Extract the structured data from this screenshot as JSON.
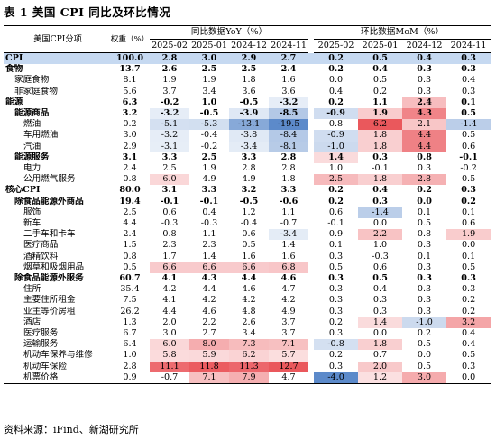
{
  "title": "表 1 美国 CPI 同比及环比情况",
  "source": "资料来源：iFind、新湖研究所",
  "header": {
    "item": "美国CPI分项",
    "weight": "权重（%）",
    "yoy_group": "同比数据YoY（%）",
    "mom_group": "环比数据MoM（%）",
    "months": [
      "2025-02",
      "2025-01",
      "2024-12",
      "2024-11"
    ]
  },
  "colors": {
    "cpi_row_bg": "#c6d9f1",
    "red": "#e8454a",
    "blue": "#4a7dc4"
  },
  "rows": [
    {
      "name": "CPI",
      "indent": 0,
      "bold": true,
      "cpi": true,
      "weight": "100.0",
      "yoy": [
        "2.8",
        "3.0",
        "2.9",
        "2.7"
      ],
      "mom": [
        "0.2",
        "0.5",
        "0.4",
        "0.3"
      ]
    },
    {
      "name": "食物",
      "indent": 0,
      "bold": true,
      "weight": "13.7",
      "yoy": [
        "2.6",
        "2.5",
        "2.5",
        "2.4"
      ],
      "mom": [
        "0.2",
        "0.4",
        "0.3",
        "0.3"
      ]
    },
    {
      "name": "家庭食物",
      "indent": 1,
      "bold": false,
      "weight": "8.1",
      "yoy": [
        "1.9",
        "1.9",
        "1.8",
        "1.6"
      ],
      "mom": [
        "0.0",
        "0.5",
        "0.3",
        "0.4"
      ]
    },
    {
      "name": "非家庭食物",
      "indent": 1,
      "bold": false,
      "weight": "5.6",
      "yoy": [
        "3.7",
        "3.4",
        "3.6",
        "3.6"
      ],
      "mom": [
        "0.4",
        "0.2",
        "0.3",
        "0.3"
      ]
    },
    {
      "name": "能源",
      "indent": 0,
      "bold": true,
      "weight": "6.3",
      "yoy": [
        "-0.2",
        "1.0",
        "-0.5",
        "-3.2"
      ],
      "mom": [
        "0.2",
        "1.1",
        "2.4",
        "0.1"
      ]
    },
    {
      "name": "能源商品",
      "indent": 1,
      "bold": true,
      "weight": "3.2",
      "yoy": [
        "-3.2",
        "-0.5",
        "-3.9",
        "-8.5"
      ],
      "mom": [
        "-0.9",
        "1.9",
        "4.3",
        "0.5"
      ]
    },
    {
      "name": "燃油",
      "indent": 2,
      "bold": false,
      "weight": "0.2",
      "yoy": [
        "-5.1",
        "-5.3",
        "-13.1",
        "-19.5"
      ],
      "mom": [
        "0.8",
        "6.2",
        "2.1",
        "-1.4"
      ]
    },
    {
      "name": "车用燃油",
      "indent": 2,
      "bold": false,
      "weight": "3.0",
      "yoy": [
        "-3.2",
        "-0.4",
        "-3.8",
        "-8.4"
      ],
      "mom": [
        "-0.9",
        "1.8",
        "4.4",
        "0.5"
      ]
    },
    {
      "name": "汽油",
      "indent": 2,
      "bold": false,
      "weight": "2.9",
      "yoy": [
        "-3.1",
        "-0.2",
        "-3.4",
        "-8.1"
      ],
      "mom": [
        "-1.0",
        "1.8",
        "4.4",
        "0.6"
      ]
    },
    {
      "name": "能源服务",
      "indent": 1,
      "bold": true,
      "weight": "3.1",
      "yoy": [
        "3.3",
        "2.5",
        "3.3",
        "2.8"
      ],
      "mom": [
        "1.4",
        "0.3",
        "0.8",
        "-0.1"
      ]
    },
    {
      "name": "电力",
      "indent": 2,
      "bold": false,
      "weight": "2.4",
      "yoy": [
        "2.5",
        "1.9",
        "2.8",
        "2.8"
      ],
      "mom": [
        "1.0",
        "-0.1",
        "0.3",
        "-0.2"
      ]
    },
    {
      "name": "公用燃气服务",
      "indent": 2,
      "bold": false,
      "weight": "0.8",
      "yoy": [
        "6.0",
        "4.9",
        "4.9",
        "1.8"
      ],
      "mom": [
        "2.5",
        "1.8",
        "2.8",
        "0.5"
      ]
    },
    {
      "name": "核心CPI",
      "indent": 0,
      "bold": true,
      "weight": "80.0",
      "yoy": [
        "3.1",
        "3.3",
        "3.2",
        "3.3"
      ],
      "mom": [
        "0.2",
        "0.4",
        "0.2",
        "0.3"
      ]
    },
    {
      "name": "除食品能源外商品",
      "indent": 1,
      "bold": true,
      "weight": "19.4",
      "yoy": [
        "-0.1",
        "-0.1",
        "-0.5",
        "-0.6"
      ],
      "mom": [
        "0.2",
        "0.3",
        "0.0",
        "0.2"
      ]
    },
    {
      "name": "服饰",
      "indent": 2,
      "bold": false,
      "weight": "2.5",
      "yoy": [
        "0.6",
        "0.4",
        "1.2",
        "1.1"
      ],
      "mom": [
        "0.6",
        "-1.4",
        "0.1",
        "0.1"
      ]
    },
    {
      "name": "新车",
      "indent": 2,
      "bold": false,
      "weight": "4.4",
      "yoy": [
        "-0.3",
        "-0.3",
        "-0.4",
        "-0.7"
      ],
      "mom": [
        "-0.1",
        "0.0",
        "0.5",
        "0.6"
      ]
    },
    {
      "name": "二手车和卡车",
      "indent": 2,
      "bold": false,
      "weight": "2.4",
      "yoy": [
        "0.8",
        "1.1",
        "0.6",
        "-3.4"
      ],
      "mom": [
        "0.9",
        "2.2",
        "0.8",
        "1.9"
      ]
    },
    {
      "name": "医疗商品",
      "indent": 2,
      "bold": false,
      "weight": "1.5",
      "yoy": [
        "2.3",
        "2.3",
        "0.5",
        "1.4"
      ],
      "mom": [
        "0.1",
        "1.0",
        "0.3",
        "0.0"
      ]
    },
    {
      "name": "酒精饮料",
      "indent": 2,
      "bold": false,
      "weight": "0.8",
      "yoy": [
        "1.7",
        "1.4",
        "1.6",
        "1.6"
      ],
      "mom": [
        "0.3",
        "-0.3",
        "0.1",
        "0.1"
      ]
    },
    {
      "name": "烟草和吸烟用品",
      "indent": 2,
      "bold": false,
      "weight": "0.5",
      "yoy": [
        "6.6",
        "6.6",
        "6.6",
        "6.8"
      ],
      "mom": [
        "0.5",
        "0.6",
        "0.3",
        "0.5"
      ]
    },
    {
      "name": "除食品能源外服务",
      "indent": 1,
      "bold": true,
      "weight": "60.7",
      "yoy": [
        "4.1",
        "4.3",
        "4.4",
        "4.6"
      ],
      "mom": [
        "0.3",
        "0.5",
        "0.3",
        "0.3"
      ]
    },
    {
      "name": "住所",
      "indent": 2,
      "bold": false,
      "weight": "35.4",
      "yoy": [
        "4.2",
        "4.4",
        "4.6",
        "4.7"
      ],
      "mom": [
        "0.3",
        "0.4",
        "0.3",
        "0.3"
      ]
    },
    {
      "name": "主要住所租金",
      "indent": 2,
      "bold": false,
      "weight": "7.5",
      "yoy": [
        "4.1",
        "4.2",
        "4.2",
        "4.2"
      ],
      "mom": [
        "0.3",
        "0.3",
        "0.3",
        "0.2"
      ]
    },
    {
      "name": "业主等价房租",
      "indent": 2,
      "bold": false,
      "weight": "26.2",
      "yoy": [
        "4.4",
        "4.6",
        "4.8",
        "4.9"
      ],
      "mom": [
        "0.3",
        "0.3",
        "0.3",
        "0.2"
      ]
    },
    {
      "name": "酒店",
      "indent": 2,
      "bold": false,
      "weight": "1.3",
      "yoy": [
        "2.0",
        "2.2",
        "2.6",
        "3.7"
      ],
      "mom": [
        "0.2",
        "1.4",
        "-1.0",
        "3.2"
      ]
    },
    {
      "name": "医疗服务",
      "indent": 2,
      "bold": false,
      "weight": "6.7",
      "yoy": [
        "3.0",
        "2.7",
        "3.4",
        "3.7"
      ],
      "mom": [
        "0.3",
        "0.0",
        "0.2",
        "0.4"
      ]
    },
    {
      "name": "运输服务",
      "indent": 2,
      "bold": false,
      "weight": "6.4",
      "yoy": [
        "6.0",
        "8.0",
        "7.3",
        "7.1"
      ],
      "mom": [
        "-0.8",
        "1.8",
        "0.5",
        "0.4"
      ]
    },
    {
      "name": "机动车保养与维修",
      "indent": 2,
      "bold": false,
      "weight": "1.0",
      "yoy": [
        "5.8",
        "5.9",
        "6.2",
        "5.7"
      ],
      "mom": [
        "0.2",
        "0.7",
        "0.0",
        "0.5"
      ]
    },
    {
      "name": "机动车保险",
      "indent": 2,
      "bold": false,
      "weight": "2.8",
      "yoy": [
        "11.1",
        "11.8",
        "11.3",
        "12.7"
      ],
      "mom": [
        "0.3",
        "2.0",
        "0.5",
        "0.3"
      ]
    },
    {
      "name": "机票价格",
      "indent": 2,
      "bold": false,
      "weight": "0.9",
      "yoy": [
        "-0.7",
        "7.1",
        "7.9",
        "4.7"
      ],
      "mom": [
        "-4.0",
        "1.2",
        "3.0",
        "0.0"
      ]
    }
  ]
}
